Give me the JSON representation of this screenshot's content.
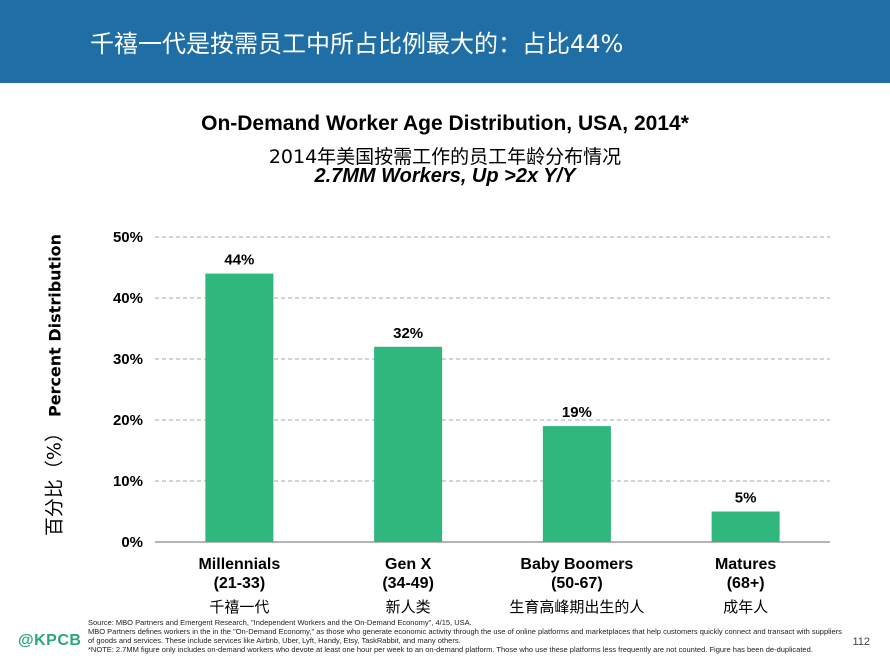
{
  "header": {
    "title": "千禧一代是按需员工中所占比例最大的：占比44%"
  },
  "chart_data": {
    "type": "bar",
    "title": "On-Demand Worker Age Distribution, USA, 2014*",
    "subtitle_cn": "2014年美国按需工作的员工年龄分布情况",
    "subtitle": "2.7MM Workers, Up >2x Y/Y",
    "ylabel": "Percent Distribution",
    "ylabel_cn": "百分比（%）",
    "ylim": [
      0,
      50
    ],
    "yticks": [
      "0%",
      "10%",
      "20%",
      "30%",
      "40%",
      "50%"
    ],
    "grid": true,
    "bar_color": "#2fb77d",
    "categories": [
      {
        "name": "Millennials",
        "range": "(21-33)",
        "cn": "千禧一代"
      },
      {
        "name": "Gen X",
        "range": "(34-49)",
        "cn": "新人类"
      },
      {
        "name": "Baby Boomers",
        "range": "(50-67)",
        "cn": "生育高峰期出生的人"
      },
      {
        "name": "Matures",
        "range": "(68+)",
        "cn": "成年人"
      }
    ],
    "values": [
      44,
      32,
      19,
      5
    ],
    "value_labels": [
      "44%",
      "32%",
      "19%",
      "5%"
    ]
  },
  "footer": {
    "logo": "@KPCB",
    "page_number": "112",
    "source_lines": [
      "Source:  MBO Partners and Emergent Research, \"Independent Workers and the On-Demand Economy\", 4/15, USA.",
      "MBO Partners defines workers in the in the \"On-Demand Economy,\" as those who generate economic activity through the use of online platforms and marketplaces that help customers quickly connect and transact with suppliers of goods and services. These include services like Airbnb, Uber, Lyft, Handy, Etsy, TaskRabbit, and many others.",
      "*NOTE: 2.7MM figure only includes on-demand workers who devote at least one hour per week to an on-demand platform. Those who use these platforms less frequently are not counted. Figure has been de-duplicated."
    ]
  }
}
